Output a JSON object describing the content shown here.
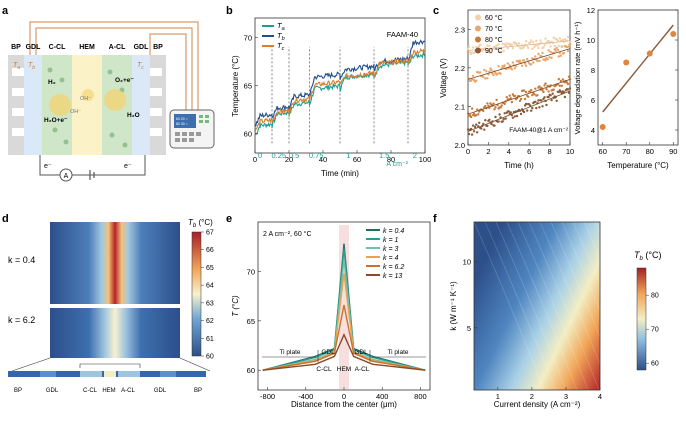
{
  "panel_labels": {
    "a": "a",
    "b": "b",
    "c": "c",
    "d": "d",
    "e": "e",
    "f": "f"
  },
  "panel_a": {
    "layers": [
      "BP",
      "GDL",
      "C-CL",
      "HEM",
      "A-CL",
      "GDL",
      "BP"
    ],
    "ta": "T",
    "ta_sub": "a",
    "tb": "T",
    "tb_sub": "b",
    "tc": "T",
    "tc_sub": "c",
    "h2": "H₂",
    "h2o_left": "H₂O+e⁻",
    "oh": "OH⁻",
    "oh2": "OH⁻",
    "o2": "O₂+e⁻",
    "h2o_right": "H₂O",
    "e_left": "e⁻",
    "e_right": "e⁻",
    "ammeter": "A",
    "display_line1": "60 20 ○",
    "display_line2": "80 30 ○"
  },
  "chart_b": {
    "title": "FAAM-40",
    "xlabel": "Time (min)",
    "ylabel": "Temperature (°C)",
    "xticks": [
      "0",
      "20",
      "40",
      "60",
      "80",
      "100"
    ],
    "yticks": [
      "60",
      "65",
      "70"
    ],
    "xlim": [
      0,
      100
    ],
    "ylim": [
      58,
      72
    ],
    "legend": [
      {
        "name": "T",
        "sub": "a",
        "color": "#1a9e8f"
      },
      {
        "name": "T",
        "sub": "b",
        "color": "#1f4e8c"
      },
      {
        "name": "T",
        "sub": "c",
        "color": "#d97e2a"
      }
    ],
    "current_labels": [
      "0",
      "0.25",
      "0.5",
      "0.75",
      "1",
      "1.5",
      "2"
    ],
    "current_unit": "A cm⁻²",
    "current_x": [
      3,
      14,
      23,
      36,
      55,
      76,
      94
    ],
    "step_times": [
      0,
      10,
      20,
      32,
      50,
      70,
      90,
      100
    ],
    "series_a": [
      60.8,
      62.0,
      63.0,
      64.6,
      65.8,
      67.0,
      68.0
    ],
    "series_b": [
      61.8,
      62.6,
      63.8,
      65.8,
      66.6,
      67.4,
      69.4
    ],
    "series_c": [
      61.2,
      62.2,
      63.4,
      65.0,
      65.9,
      67.2,
      68.4
    ]
  },
  "chart_c": {
    "xlabel": "Time (h)",
    "ylabel": "Voltage (V)",
    "xticks": [
      "0",
      "2",
      "4",
      "6",
      "8",
      "10"
    ],
    "yticks": [
      "2.0",
      "2.1",
      "2.2",
      "2.3"
    ],
    "xlim": [
      0,
      10
    ],
    "ylim": [
      2.0,
      2.35
    ],
    "annotation": "FAAM-40@1 A cm⁻²",
    "legend": [
      {
        "name": "60 °C",
        "color": "#f3d1a8"
      },
      {
        "name": "70 °C",
        "color": "#e9a56a"
      },
      {
        "name": "80 °C",
        "color": "#c77a3a"
      },
      {
        "name": "90 °C",
        "color": "#8a5a3a"
      }
    ],
    "series": [
      {
        "start": 2.245,
        "end": 2.27,
        "color": "#f3d1a8"
      },
      {
        "start": 2.17,
        "end": 2.25,
        "color": "#e9a56a"
      },
      {
        "start": 2.08,
        "end": 2.17,
        "color": "#c77a3a"
      },
      {
        "start": 2.035,
        "end": 2.14,
        "color": "#8a5a3a"
      }
    ]
  },
  "chart_c2": {
    "xlabel": "Temperature (°C)",
    "ylabel": "Voltage degradation rate (mV h⁻¹)",
    "xticks": [
      "60",
      "70",
      "80",
      "90"
    ],
    "yticks": [
      "4",
      "6",
      "8",
      "10",
      "12"
    ],
    "xlim": [
      58,
      92
    ],
    "ylim": [
      3,
      12
    ],
    "points": [
      {
        "x": 60,
        "y": 4.2
      },
      {
        "x": 70,
        "y": 8.5
      },
      {
        "x": 80,
        "y": 9.1
      },
      {
        "x": 90,
        "y": 10.4
      }
    ],
    "fit": [
      {
        "x": 60,
        "y": 5.2
      },
      {
        "x": 90,
        "y": 11.0
      }
    ]
  },
  "panel_d": {
    "k1": "k = 0.4",
    "k2": "k = 6.2",
    "cbar_title": "T",
    "cbar_sub": "b",
    "cbar_unit": " (°C)",
    "cbar_ticks": [
      "60",
      "61",
      "62",
      "63",
      "64",
      "65",
      "66",
      "67"
    ],
    "bottom_labels": [
      "BP",
      "GDL",
      "C-CL",
      "HEM",
      "A-CL",
      "GDL",
      "BP"
    ]
  },
  "chart_e": {
    "note": "2 A cm⁻², 60 °C",
    "xlabel": "Distance from the center (μm)",
    "ylabel": "T (°C)",
    "xticks": [
      "-800",
      "-400",
      "0",
      "400",
      "800"
    ],
    "yticks": [
      "60",
      "65",
      "70"
    ],
    "xlim": [
      -900,
      900
    ],
    "ylim": [
      58,
      75
    ],
    "labels": {
      "ti_left": "Ti plate",
      "ti_right": "Ti plate",
      "gdl_left": "GDL",
      "gdl_right": "GDL",
      "ccl": "C-CL",
      "hem": "HEM",
      "acl": "A-CL"
    },
    "series": [
      {
        "name": "k = 0.4",
        "peak": 72.8,
        "shoulder": 61.4,
        "color": "#1e6e63"
      },
      {
        "name": "k = 1",
        "peak": 72.3,
        "shoulder": 61.3,
        "color": "#2a9d8f"
      },
      {
        "name": "k = 3",
        "peak": 71.2,
        "shoulder": 61.1,
        "color": "#6fc0a8"
      },
      {
        "name": "k = 4",
        "peak": 69.8,
        "shoulder": 61.0,
        "color": "#e9a24f"
      },
      {
        "name": "k = 6.2",
        "peak": 66.6,
        "shoulder": 60.9,
        "color": "#c9722f"
      },
      {
        "name": "k = 13",
        "peak": 63.6,
        "shoulder": 60.6,
        "color": "#8a4a25"
      }
    ]
  },
  "chart_f": {
    "xlabel": "Current density (A cm⁻²)",
    "ylabel": "k (W m⁻¹ K⁻¹)",
    "xticks": [
      "1",
      "2",
      "3",
      "4"
    ],
    "yticks": [
      "5",
      "10"
    ],
    "xlim": [
      0.3,
      4
    ],
    "ylim": [
      0.3,
      13
    ],
    "cbar_title": "T",
    "cbar_sub": "b",
    "cbar_unit": " (°C)",
    "cbar_ticks": [
      "60",
      "70",
      "80"
    ]
  }
}
